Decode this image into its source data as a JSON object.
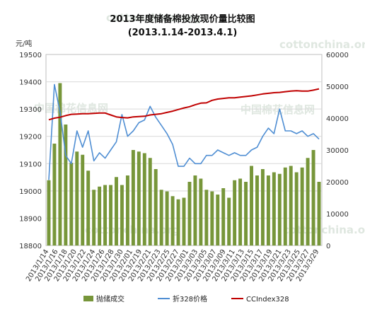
{
  "chart_data": {
    "type": "bar",
    "title": "2013年度储备棉投放现价量比较图",
    "subtitle": "(2013.1.14-2013.4.1)",
    "left_unit": "元/吨",
    "watermarks": [
      "cottonchina.org",
      "cottonchina.org",
      "中国棉花信息网",
      "中国棉花信息网",
      "cottonchina.org",
      "cottonchina.org"
    ],
    "colors": {
      "bar": "#77963a",
      "line_blue": "#4f8ed3",
      "line_red": "#c00000",
      "watermark": "#dfe7e0"
    },
    "ylim_left": [
      18800,
      19500
    ],
    "ylim_right": [
      0,
      60000
    ],
    "yticks_left": [
      "19500",
      "19400",
      "19300",
      "19200",
      "19100",
      "19000",
      "18900",
      "18800"
    ],
    "yticks_right": [
      "60000",
      "50000",
      "40000",
      "30000",
      "20000",
      "10000",
      "0"
    ],
    "x_tick_labels": [
      "2013/1/14",
      "2013/1/16",
      "2013/1/18",
      "2013/1/20",
      "2013/1/22",
      "2013/1/24",
      "2013/1/26",
      "2013/1/28",
      "2013/1/30",
      "2013/2/01",
      "2013/2/19",
      "2013/2/21",
      "2013/2/23",
      "2013/2/25",
      "2013/2/27",
      "2013/3/01",
      "2013/3/03",
      "2013/3/05",
      "2013/3/07",
      "2013/3/09",
      "2013/3/11",
      "2013/3/13",
      "2013/3/15",
      "2013/3/17",
      "2013/3/19",
      "2013/3/21",
      "2013/3/23",
      "2013/3/25",
      "2013/3/27",
      "2013/3/29"
    ],
    "series": [
      {
        "name": "抛储成交",
        "type": "bar",
        "axis": "right",
        "values": [
          20500,
          32000,
          51000,
          38000,
          26000,
          29500,
          28500,
          23500,
          17500,
          18500,
          19000,
          19000,
          21500,
          19000,
          22000,
          30000,
          29500,
          29000,
          27500,
          24000,
          17500,
          17000,
          15500,
          14500,
          15000,
          20000,
          22000,
          21000,
          17500,
          17000,
          16000,
          18000,
          15000,
          20500,
          21000,
          20000,
          25000,
          22000,
          24000,
          22000,
          23000,
          22500,
          24500,
          25000,
          23000,
          24500,
          27500,
          30000,
          20000
        ]
      },
      {
        "name": "折328价格",
        "type": "line",
        "axis": "left",
        "values": [
          19040,
          19390,
          19290,
          19130,
          19100,
          19220,
          19160,
          19220,
          19110,
          19140,
          19120,
          19150,
          19180,
          19280,
          19200,
          19220,
          19250,
          19260,
          19310,
          19270,
          19240,
          19210,
          19170,
          19090,
          19090,
          19120,
          19100,
          19100,
          19130,
          19130,
          19150,
          19140,
          19130,
          19140,
          19130,
          19130,
          19150,
          19160,
          19200,
          19230,
          19210,
          19300,
          19220,
          19220,
          19210,
          19220,
          19200,
          19210,
          19190
        ]
      },
      {
        "name": "CCIndex328",
        "type": "line",
        "axis": "right",
        "values": [
          39500,
          40000,
          40300,
          40800,
          41200,
          41300,
          41400,
          41400,
          41500,
          41600,
          41600,
          41000,
          40400,
          40200,
          40100,
          40400,
          40500,
          40600,
          41000,
          41200,
          41400,
          41800,
          42200,
          42700,
          43200,
          43600,
          44200,
          44700,
          44800,
          45600,
          46000,
          46200,
          46400,
          46400,
          46600,
          46800,
          47000,
          47300,
          47600,
          47800,
          48000,
          48100,
          48300,
          48500,
          48600,
          48500,
          48500,
          48800,
          49200
        ]
      }
    ],
    "legend": [
      "抛储成交",
      "折328价格",
      "CCIndex328"
    ],
    "legend_position": "bottom"
  }
}
